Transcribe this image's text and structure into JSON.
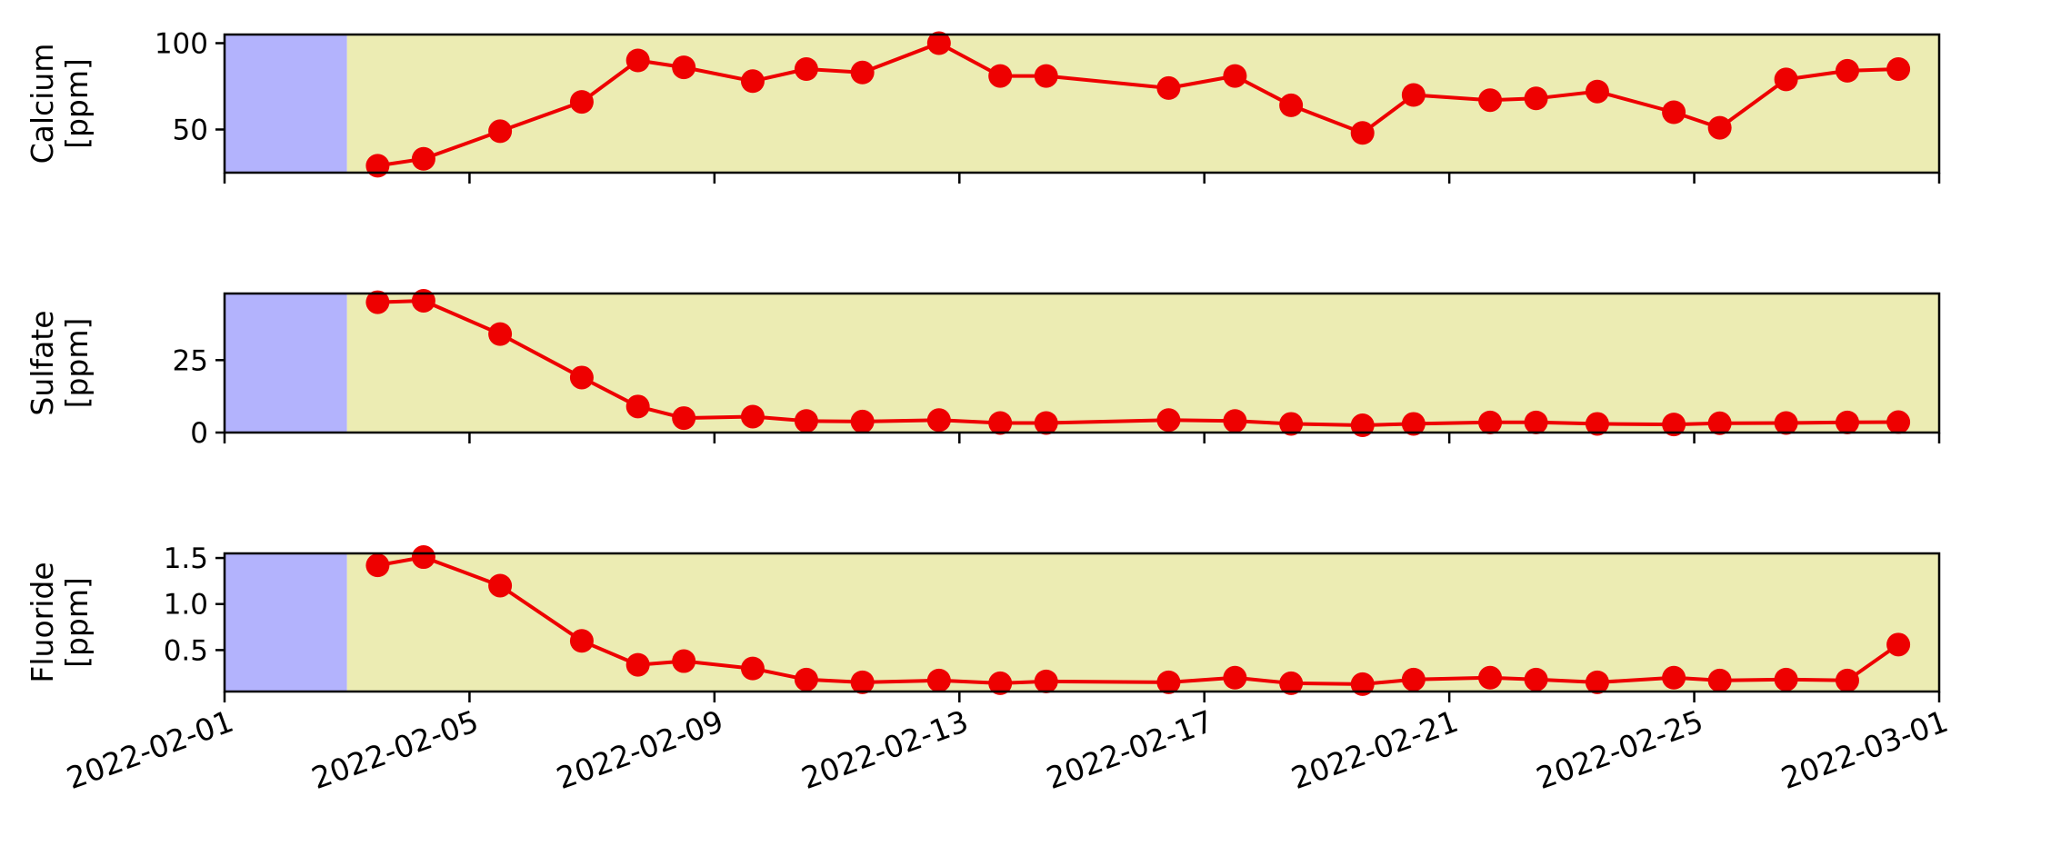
{
  "chart_data": [
    {
      "type": "line",
      "ylabel_line1": "Calcium",
      "ylabel_line2": "[ppm]",
      "ylim": [
        25,
        105
      ],
      "yticks": [
        "50",
        "100"
      ],
      "ytick_values": [
        50,
        100
      ],
      "x_range": [
        "2022-02-01",
        "2022-03-01"
      ],
      "shaded_periods": [
        {
          "from": "2022-02-01",
          "to": "2022-02-03",
          "color": "#b3b3fd"
        },
        {
          "from": "2022-02-03",
          "to": "2022-03-01",
          "color": "#ececb3"
        }
      ],
      "series": [
        {
          "color": "#ee0000",
          "x": [
            "2022-02-03 12:00",
            "2022-02-04 06:00",
            "2022-02-05 12:00",
            "2022-02-06 20:00",
            "2022-02-07 18:00",
            "2022-02-08 12:00",
            "2022-02-09 15:00",
            "2022-02-10 12:00",
            "2022-02-11 10:00",
            "2022-02-12 16:00",
            "2022-02-13 16:00",
            "2022-02-14 10:00",
            "2022-02-16 10:00",
            "2022-02-17 12:00",
            "2022-02-18 10:00",
            "2022-02-19 14:00",
            "2022-02-20 10:00",
            "2022-02-21 16:00",
            "2022-02-22 10:00",
            "2022-02-23 10:00",
            "2022-02-24 16:00",
            "2022-02-25 10:00",
            "2022-02-26 12:00",
            "2022-02-27 12:00",
            "2022-02-28 08:00"
          ],
          "values": [
            29,
            33,
            49,
            66,
            90,
            86,
            78,
            85,
            83,
            100,
            81,
            81,
            74,
            81,
            64,
            48,
            70,
            67,
            68,
            72,
            60,
            51,
            79,
            84,
            85
          ]
        }
      ]
    },
    {
      "type": "line",
      "ylabel_line1": "Sulfate",
      "ylabel_line2": "[ppm]",
      "ylim": [
        0,
        48
      ],
      "yticks": [
        "0",
        "25"
      ],
      "ytick_values": [
        0,
        25
      ],
      "x_range": [
        "2022-02-01",
        "2022-03-01"
      ],
      "shaded_periods": [
        {
          "from": "2022-02-01",
          "to": "2022-02-03",
          "color": "#b3b3fd"
        },
        {
          "from": "2022-02-03",
          "to": "2022-03-01",
          "color": "#ececb3"
        }
      ],
      "series": [
        {
          "color": "#ee0000",
          "x": [
            "2022-02-03 12:00",
            "2022-02-04 06:00",
            "2022-02-05 12:00",
            "2022-02-06 20:00",
            "2022-02-07 18:00",
            "2022-02-08 12:00",
            "2022-02-09 15:00",
            "2022-02-10 12:00",
            "2022-02-11 10:00",
            "2022-02-12 16:00",
            "2022-02-13 16:00",
            "2022-02-14 10:00",
            "2022-02-16 10:00",
            "2022-02-17 12:00",
            "2022-02-18 10:00",
            "2022-02-19 14:00",
            "2022-02-20 10:00",
            "2022-02-21 16:00",
            "2022-02-22 10:00",
            "2022-02-23 10:00",
            "2022-02-24 16:00",
            "2022-02-25 10:00",
            "2022-02-26 12:00",
            "2022-02-27 12:00",
            "2022-02-28 08:00"
          ],
          "values": [
            45,
            45.5,
            34,
            19,
            9,
            5,
            5.5,
            4,
            3.8,
            4.3,
            3.3,
            3.3,
            4.3,
            4,
            3,
            2.5,
            3,
            3.5,
            3.5,
            3,
            2.8,
            3.2,
            3.3,
            3.5,
            3.6
          ]
        }
      ]
    },
    {
      "type": "line",
      "ylabel_line1": "Fluoride",
      "ylabel_line2": "[ppm]",
      "ylim": [
        0.05,
        1.55
      ],
      "yticks": [
        "0.5",
        "1.0",
        "1.5"
      ],
      "ytick_values": [
        0.5,
        1.0,
        1.5
      ],
      "x_range": [
        "2022-02-01",
        "2022-03-01"
      ],
      "xticks": [
        "2022-02-01",
        "2022-02-05",
        "2022-02-09",
        "2022-02-13",
        "2022-02-17",
        "2022-02-21",
        "2022-02-25",
        "2022-03-01"
      ],
      "shaded_periods": [
        {
          "from": "2022-02-01",
          "to": "2022-02-03",
          "color": "#b3b3fd"
        },
        {
          "from": "2022-02-03",
          "to": "2022-03-01",
          "color": "#ececb3"
        }
      ],
      "series": [
        {
          "color": "#ee0000",
          "x": [
            "2022-02-03 12:00",
            "2022-02-04 06:00",
            "2022-02-05 12:00",
            "2022-02-06 20:00",
            "2022-02-07 18:00",
            "2022-02-08 12:00",
            "2022-02-09 15:00",
            "2022-02-10 12:00",
            "2022-02-11 10:00",
            "2022-02-12 16:00",
            "2022-02-13 16:00",
            "2022-02-14 10:00",
            "2022-02-16 10:00",
            "2022-02-17 12:00",
            "2022-02-18 10:00",
            "2022-02-19 14:00",
            "2022-02-20 10:00",
            "2022-02-21 16:00",
            "2022-02-22 10:00",
            "2022-02-23 10:00",
            "2022-02-24 16:00",
            "2022-02-25 10:00",
            "2022-02-26 12:00",
            "2022-02-27 12:00",
            "2022-02-28 08:00"
          ],
          "values": [
            1.42,
            1.51,
            1.2,
            0.6,
            0.34,
            0.38,
            0.3,
            0.18,
            0.15,
            0.17,
            0.14,
            0.16,
            0.15,
            0.2,
            0.14,
            0.13,
            0.18,
            0.2,
            0.18,
            0.15,
            0.2,
            0.17,
            0.18,
            0.17,
            0.56
          ]
        }
      ]
    }
  ]
}
